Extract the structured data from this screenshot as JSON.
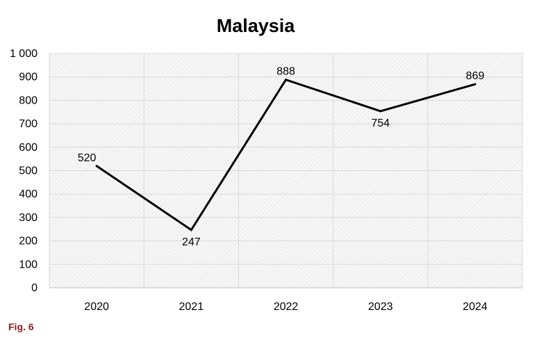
{
  "figure": {
    "caption": "Fig. 6"
  },
  "chart_data": {
    "type": "line",
    "title": "Malaysia",
    "xlabel": "",
    "ylabel": "",
    "categories": [
      "2020",
      "2021",
      "2022",
      "2023",
      "2024"
    ],
    "series": [
      {
        "values": [
          520,
          247,
          888,
          754,
          869
        ],
        "color": "#000000"
      }
    ],
    "data_labels": [
      "520",
      "247",
      "888",
      "754",
      "869"
    ],
    "ylim": [
      0,
      1000
    ],
    "y_ticks": [
      0,
      100,
      200,
      300,
      400,
      500,
      600,
      700,
      800,
      900,
      1000
    ],
    "y_tick_labels": [
      "0",
      "100",
      "200",
      "300",
      "400",
      "500",
      "600",
      "700",
      "800",
      "900",
      "1 000"
    ],
    "grid": true,
    "plot_background": "hatched-light-gray",
    "legend": "none"
  }
}
